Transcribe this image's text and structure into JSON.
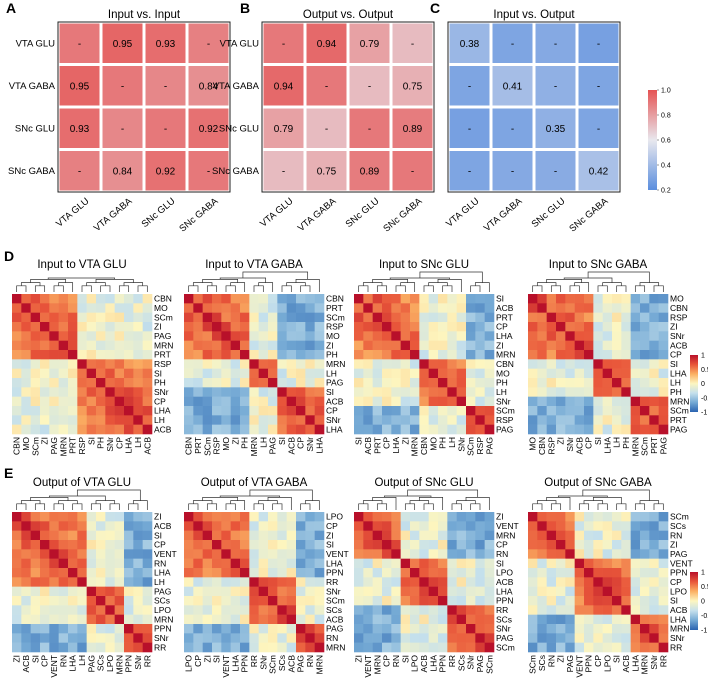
{
  "panel_labels": [
    "A",
    "B",
    "C",
    "D",
    "E"
  ],
  "color_scales": {
    "top": {
      "min": 0.2,
      "max": 1.0,
      "ticks": [
        "1.0",
        "0.8",
        "0.6",
        "0.4",
        "0.2"
      ],
      "low_color": "#5b8ede",
      "mid_color": "#e8e8ee",
      "high_color": "#e55353"
    },
    "corr": {
      "min": -1,
      "max": 1,
      "ticks": [
        "1",
        "0.5",
        "0",
        "-0.5",
        "-1"
      ],
      "colors": [
        "#2a63b0",
        "#74a9d4",
        "#c5e0ec",
        "#fdf6c0",
        "#fbb063",
        "#e8553a",
        "#b8102a"
      ]
    }
  },
  "chart_data": [
    {
      "type": "heatmap",
      "panel": "A",
      "title": "Input vs. Input",
      "rows": [
        "VTA GLU",
        "VTA GABA",
        "SNc GLU",
        "SNc GABA"
      ],
      "cols": [
        "VTA GLU",
        "VTA GABA",
        "SNc GLU",
        "SNc GABA"
      ],
      "values": [
        [
          null,
          0.95,
          0.93,
          0.88
        ],
        [
          0.95,
          null,
          0.86,
          0.84
        ],
        [
          0.93,
          0.86,
          null,
          0.92
        ],
        [
          0.88,
          0.84,
          0.92,
          null
        ]
      ],
      "cell_labels": [
        [
          "-",
          "0.95",
          "0.93",
          "-"
        ],
        [
          "0.95",
          "-",
          "-",
          "0.84"
        ],
        [
          "0.93",
          "-",
          "-",
          "0.92"
        ],
        [
          "-",
          "0.84",
          "0.92",
          "-"
        ]
      ]
    },
    {
      "type": "heatmap",
      "panel": "B",
      "title": "Output vs. Output",
      "rows": [
        "VTA GLU",
        "VTA GABA",
        "SNc GLU",
        "SNc GABA"
      ],
      "cols": [
        "VTA GLU",
        "VTA GABA",
        "SNc GLU",
        "SNc GABA"
      ],
      "values": [
        [
          null,
          0.94,
          0.79,
          0.72
        ],
        [
          0.94,
          null,
          0.72,
          0.75
        ],
        [
          0.79,
          0.72,
          null,
          0.89
        ],
        [
          0.72,
          0.75,
          0.89,
          null
        ]
      ],
      "cell_labels": [
        [
          "-",
          "0.94",
          "0.79",
          "-"
        ],
        [
          "0.94",
          "-",
          "-",
          "0.75"
        ],
        [
          "0.79",
          "-",
          "-",
          "0.89"
        ],
        [
          "-",
          "0.75",
          "0.89",
          "-"
        ]
      ]
    },
    {
      "type": "heatmap",
      "panel": "C",
      "title": "Input vs. Output",
      "rows": [
        "VTA GLU",
        "VTA GABA",
        "SNc GLU",
        "SNc GABA"
      ],
      "cols": [
        "VTA GLU",
        "VTA GABA",
        "SNc GLU",
        "SNc GABA"
      ],
      "values": [
        [
          0.38,
          0.3,
          0.32,
          0.28
        ],
        [
          0.3,
          0.41,
          0.35,
          0.3
        ],
        [
          0.28,
          0.3,
          0.35,
          0.3
        ],
        [
          0.3,
          0.32,
          0.33,
          0.42
        ]
      ],
      "cell_labels": [
        [
          "0.38",
          "-",
          "-",
          "-"
        ],
        [
          "-",
          "0.41",
          "-",
          "-"
        ],
        [
          "-",
          "-",
          "0.35",
          "-"
        ],
        [
          "-",
          "-",
          "-",
          "0.42"
        ]
      ]
    },
    {
      "type": "heatmap",
      "panel": "D",
      "title": "Input to VTA GLU",
      "labels": [
        "CBN",
        "MO",
        "SCm",
        "ZI",
        "PAG",
        "MRN",
        "PRT",
        "RSP",
        "SI",
        "PH",
        "SNr",
        "CP",
        "LHA",
        "LH",
        "ACB"
      ],
      "groups": [
        [
          0,
          7
        ],
        [
          7,
          15
        ]
      ]
    },
    {
      "type": "heatmap",
      "panel": "D",
      "title": "Input to VTA GABA",
      "labels": [
        "CBN",
        "PRT",
        "SCm",
        "RSP",
        "MO",
        "ZI",
        "PH",
        "MRN",
        "LH",
        "PAG",
        "SI",
        "ACB",
        "CP",
        "SNr",
        "LHA"
      ],
      "groups": [
        [
          0,
          7
        ],
        [
          7,
          10
        ],
        [
          10,
          15
        ]
      ]
    },
    {
      "type": "heatmap",
      "panel": "D",
      "title": "Input to SNc GLU",
      "labels": [
        "SI",
        "ACB",
        "PRT",
        "CP",
        "LHA",
        "ZI",
        "MRN",
        "CBN",
        "MO",
        "PH",
        "LH",
        "SNr",
        "SCm",
        "RSP",
        "PAG"
      ],
      "groups": [
        [
          0,
          7
        ],
        [
          7,
          12
        ],
        [
          12,
          15
        ]
      ]
    },
    {
      "type": "heatmap",
      "panel": "D",
      "title": "Input to SNc GABA",
      "labels": [
        "MO",
        "CBN",
        "RSP",
        "ZI",
        "SNr",
        "ACB",
        "CP",
        "SI",
        "LHA",
        "LH",
        "PH",
        "MRN",
        "SCm",
        "PRT",
        "PAG"
      ],
      "groups": [
        [
          0,
          7
        ],
        [
          7,
          11
        ],
        [
          11,
          15
        ]
      ]
    },
    {
      "type": "heatmap",
      "panel": "E",
      "title": "Output of VTA GLU",
      "labels": [
        "ZI",
        "ACB",
        "SI",
        "CP",
        "VENT",
        "RN",
        "LHA",
        "LH",
        "PAG",
        "SCs",
        "LPO",
        "MRN",
        "PPN",
        "SNr",
        "RR"
      ],
      "groups": [
        [
          0,
          8
        ],
        [
          8,
          12
        ],
        [
          12,
          15
        ]
      ]
    },
    {
      "type": "heatmap",
      "panel": "E",
      "title": "Output of VTA GABA",
      "labels": [
        "LPO",
        "CP",
        "ZI",
        "SI",
        "VENT",
        "LHA",
        "PPN",
        "RR",
        "SNr",
        "SCm",
        "SCs",
        "ACB",
        "PAG",
        "RN",
        "MRN"
      ],
      "groups": [
        [
          0,
          7
        ],
        [
          7,
          12
        ],
        [
          12,
          15
        ]
      ]
    },
    {
      "type": "heatmap",
      "panel": "E",
      "title": "Output of SNc GLU",
      "labels": [
        "ZI",
        "VENT",
        "MRN",
        "CP",
        "RN",
        "SI",
        "LPO",
        "ACB",
        "LHA",
        "PPN",
        "RR",
        "SCs",
        "SNr",
        "PAG",
        "SCm"
      ],
      "groups": [
        [
          0,
          5
        ],
        [
          5,
          10
        ],
        [
          10,
          15
        ]
      ]
    },
    {
      "type": "heatmap",
      "panel": "E",
      "title": "Output of SNc GABA",
      "labels": [
        "SCm",
        "SCs",
        "RN",
        "ZI",
        "PAG",
        "VENT",
        "PPN",
        "CP",
        "LPO",
        "SI",
        "ACB",
        "LHA",
        "MRN",
        "SNr",
        "RR"
      ],
      "groups": [
        [
          0,
          5
        ],
        [
          5,
          11
        ],
        [
          11,
          15
        ]
      ]
    }
  ]
}
